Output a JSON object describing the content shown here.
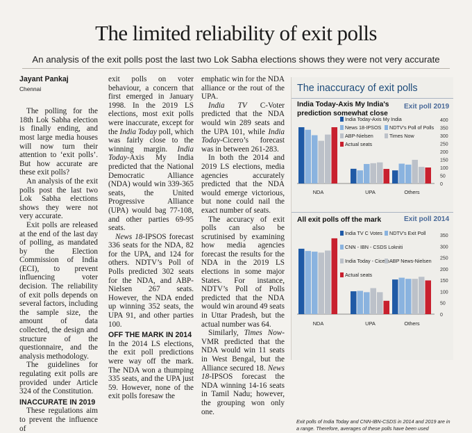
{
  "headline": "The limited reliability of exit polls",
  "subhead": "An analysis of the exit polls post the last two Lok Sabha elections shows they were not very accurate",
  "byline": "Jayant Pankaj",
  "dateline": "Chennai",
  "col1": {
    "p1": "The polling for the 18th Lok Sabha election is finally ending, and most large media houses will now turn their attention to ‘exit polls’. But how accurate are these exit polls?",
    "p2": "An analysis of the exit polls post the last two Lok Sabha elections shows they were not very accurate.",
    "p3": "Exit polls are released at the end of the last day of polling, as mandated by the Election Commission of India (ECI), to prevent influencing voter decision. The reliability of exit polls depends on several factors, including the sample size, the amount of data collected, the design and structure of the questionnaire, and the analysis methodology.",
    "p4": "The guidelines for regulating exit polls are provided under Article 324 of the Constitution.",
    "head": "INACCURATE IN 2019",
    "p5": "These regulations aim to prevent the influence of"
  },
  "col2": {
    "p1a": "exit polls on voter behaviour, a concern that first emerged in January 1998. In the 2019 LS elections, most exit polls were inaccurate, except for the ",
    "p1b": "India Today",
    "p1c": " poll, which was fairly close to the winning margin. ",
    "p1d": "India Today",
    "p1e": "-Axis My India predicted that the National Democratic Alliance (NDA) would win 339-365 seats, the United Progressive Alliance (UPA) would bag 77-108, and other parties 69-95 seats.",
    "p2a": "News 18",
    "p2b": "-IPSOS forecast 336 seats for the NDA, 82 for the UPA, and 124 for others. NDTV’s Poll of Polls predicted 302 seats for the NDA, and ABP-Nielsen 267 seats. However, the NDA ended up winning 352 seats, the UPA 91, and other parties 100.",
    "head": "OFF THE MARK IN 2014",
    "p3a": "In the 2014 LS elections, the exit poll predictions were way off the mark. The NDA won a thumping 335 seats, and the UPA just 59. However, none of the exit polls foresaw the"
  },
  "col3": {
    "p1": "emphatic win for the NDA alliance or the rout of the UPA.",
    "p2a": "India TV",
    "p2b": " C-Voter predicted that the NDA would win 289 seats and the UPA 101, while ",
    "p2c": "India Today",
    "p2d": "-Cicero’s forecast was in between 261-283.",
    "p3": "In both the 2014 and 2019 LS elections, media agencies accurately predicted that the NDA would emerge victorious, but none could nail the exact number of seats.",
    "p4": "The accuracy of exit polls can also be scrutinised by examining how media agencies forecast the results for the NDA in the 2019 LS elections in some major States. For instance, NDTV’s Poll of Polls predicted that the NDA would win around 49 seats in Uttar Pradesh, but the actual number was 64.",
    "p5a": "Similarly, ",
    "p5b": "Times Now",
    "p5c": "-VMR predicted that the NDA would win 11 seats in West Bengal, but the Alliance secured 18. ",
    "p5d": "News 18",
    "p5e": "-IPSOS forecast the NDA winning 14-16 seats in Tamil Nadu; however, the grouping won only one."
  },
  "infobox": {
    "title": "The inaccuracy of exit polls",
    "footnote": "Exit polls of India Today and CNN-IBN-CSDS in 2014 and 2019 are in a range. Therefore, averages of these polls have been used"
  },
  "colors": {
    "blue_dark": "#1f5aa6",
    "blue_light": "#8ab3df",
    "grey": "#bcc1c9",
    "red": "#c8202e",
    "title_blue": "#1d4b7a"
  },
  "chart_data": [
    {
      "type": "bar",
      "title": "India Today-Axis My India's prediction somewhat close",
      "tag": "Exit poll 2019",
      "categories": [
        "NDA",
        "UPA",
        "Others"
      ],
      "series": [
        {
          "name": "India Today-Axis My India",
          "color": "#1f5aa6",
          "values": [
            352,
            92,
            82
          ]
        },
        {
          "name": "News 18-IPSOS",
          "color": "#8ab3df",
          "values": [
            336,
            82,
            124
          ]
        },
        {
          "name": "NDTV's Poll of Polls",
          "color": "#8ab3df",
          "values": [
            302,
            122,
            118
          ]
        },
        {
          "name": "ABP-Nielsen",
          "color": "#bcc1c9",
          "values": [
            267,
            127,
            148
          ]
        },
        {
          "name": "Times Now",
          "color": "#bcc1c9",
          "values": [
            306,
            132,
            104
          ]
        },
        {
          "name": "Actual seats",
          "color": "#c8202e",
          "values": [
            352,
            91,
            100
          ]
        }
      ],
      "yticks": [
        0,
        50,
        100,
        150,
        200,
        250,
        300,
        350,
        400
      ],
      "ylim": [
        0,
        400
      ]
    },
    {
      "type": "bar",
      "title": "All exit polls off the mark",
      "tag": "Exit poll 2014",
      "categories": [
        "NDA",
        "UPA",
        "Others"
      ],
      "series": [
        {
          "name": "India TV C Votes",
          "color": "#1f5aa6",
          "values": [
            289,
            101,
            153
          ]
        },
        {
          "name": "NDTV's Exit Poll",
          "color": "#8ab3df",
          "values": [
            279,
            103,
            161
          ]
        },
        {
          "name": "CNN - IBN - CSDS Lokniti",
          "color": "#8ab3df",
          "values": [
            276,
            97,
            156
          ]
        },
        {
          "name": "India Today - Cicero",
          "color": "#bcc1c9",
          "values": [
            272,
            115,
            156
          ]
        },
        {
          "name": "ABP News-Nielsen",
          "color": "#bcc1c9",
          "values": [
            281,
            97,
            165
          ]
        },
        {
          "name": "Actual seats",
          "color": "#c8202e",
          "values": [
            335,
            59,
            149
          ]
        }
      ],
      "yticks": [
        0,
        50,
        100,
        150,
        200,
        250,
        300,
        350
      ],
      "ylim": [
        0,
        350
      ]
    }
  ]
}
